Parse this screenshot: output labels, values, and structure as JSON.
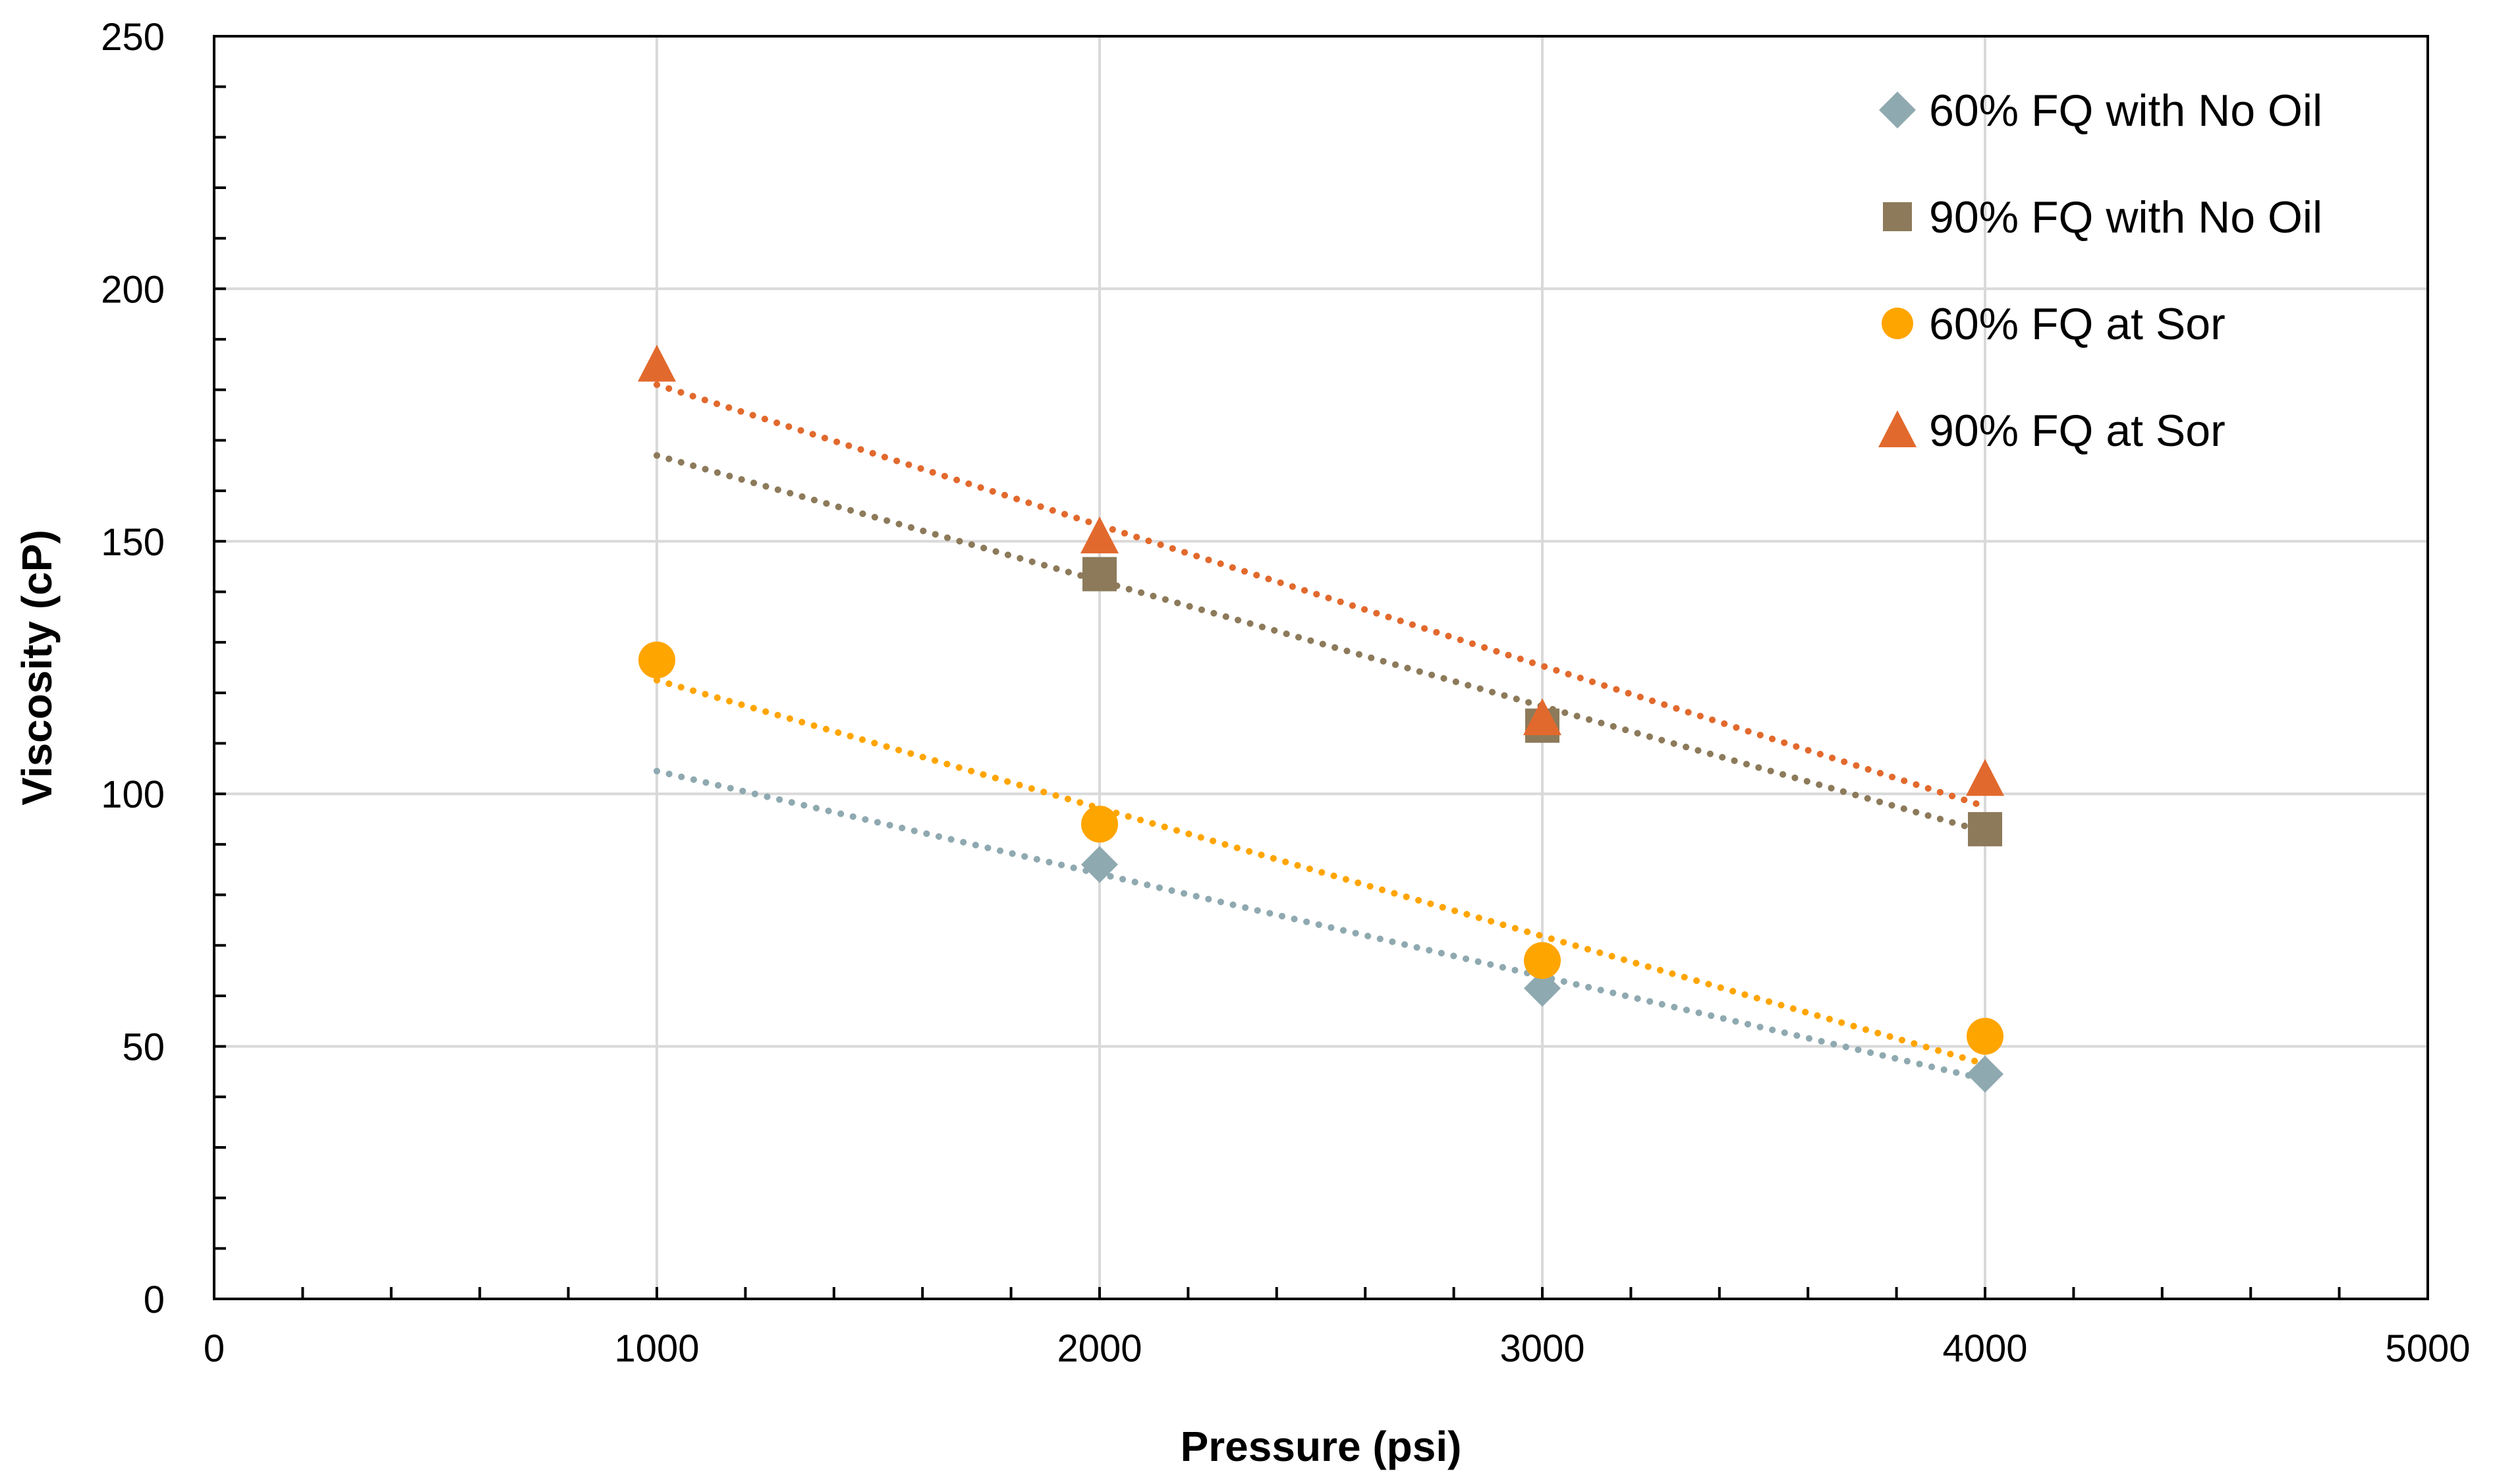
{
  "chart_data": {
    "type": "scatter",
    "title": "",
    "xlabel": "Pressure (psi)",
    "ylabel": "Viscosity (cP)",
    "xlim": [
      0,
      5000
    ],
    "ylim": [
      0,
      250
    ],
    "xticks": [
      0,
      1000,
      2000,
      3000,
      4000,
      5000
    ],
    "yticks": [
      0,
      50,
      100,
      150,
      200,
      250
    ],
    "x_tick_labels": [
      "0",
      "1000",
      "2000",
      "3000",
      "4000",
      "5000"
    ],
    "y_tick_labels": [
      "0",
      "50",
      "100",
      "150",
      "200",
      "250"
    ],
    "x_minor_step": 200,
    "y_minor_step": 10,
    "grid": true,
    "legend_position": "top-right",
    "series": [
      {
        "name": "60% FQ with No Oil",
        "marker": "diamond",
        "color": "#8FA9B0",
        "x": [
          2000,
          3000,
          4000
        ],
        "y": [
          86,
          61.5,
          44.5
        ],
        "trendline": {
          "type": "linear",
          "x": [
            1000,
            4000
          ],
          "y": [
            104.5,
            43.5
          ]
        }
      },
      {
        "name": "90% FQ with No Oil",
        "marker": "square",
        "color": "#8C7A5A",
        "x": [
          2000,
          3000,
          4000
        ],
        "y": [
          143.5,
          113.5,
          93
        ],
        "trendline": {
          "type": "linear",
          "x": [
            1000,
            4000
          ],
          "y": [
            167,
            92.5
          ]
        }
      },
      {
        "name": "60% FQ at Sor",
        "marker": "circle",
        "color": "#FFA500",
        "x": [
          1000,
          2000,
          3000,
          4000
        ],
        "y": [
          126.5,
          94,
          67,
          52
        ],
        "trendline": {
          "type": "linear",
          "x": [
            1000,
            4000
          ],
          "y": [
            122.5,
            46.5
          ]
        }
      },
      {
        "name": "90% FQ at Sor",
        "marker": "triangle",
        "color": "#E2692D",
        "x": [
          1000,
          2000,
          3000,
          4000
        ],
        "y": [
          185,
          151,
          115,
          103
        ],
        "trendline": {
          "type": "linear",
          "x": [
            1000,
            4000
          ],
          "y": [
            181,
            97.5
          ]
        }
      }
    ]
  }
}
